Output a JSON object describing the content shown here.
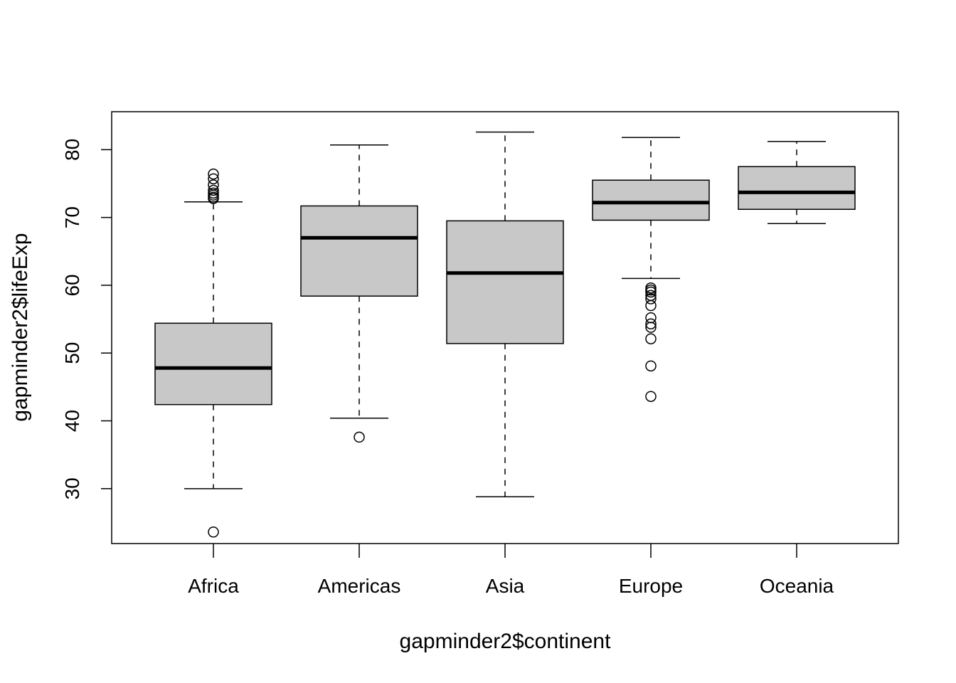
{
  "chart_data": {
    "type": "boxplot",
    "xlabel": "gapminder2$continent",
    "ylabel": "gapminder2$lifeExp",
    "categories": [
      "Africa",
      "Americas",
      "Asia",
      "Europe",
      "Oceania"
    ],
    "yticks": [
      30,
      40,
      50,
      60,
      70,
      80
    ],
    "ylim": [
      21.9,
      85.6
    ],
    "box_fill": "#c8c8c8",
    "boxes": [
      {
        "name": "Africa",
        "whisker_low": 30.0,
        "q1": 42.4,
        "median": 47.8,
        "q3": 54.4,
        "whisker_high": 72.3,
        "outliers": [
          23.6,
          72.8,
          73.0,
          73.3,
          73.6,
          74.0,
          74.8,
          75.7,
          76.4
        ]
      },
      {
        "name": "Americas",
        "whisker_low": 40.4,
        "q1": 58.4,
        "median": 67.0,
        "q3": 71.7,
        "whisker_high": 80.7,
        "outliers": [
          37.6
        ]
      },
      {
        "name": "Asia",
        "whisker_low": 28.8,
        "q1": 51.4,
        "median": 61.8,
        "q3": 69.5,
        "whisker_high": 82.6,
        "outliers": []
      },
      {
        "name": "Europe",
        "whisker_low": 61.0,
        "q1": 69.6,
        "median": 72.2,
        "q3": 75.5,
        "whisker_high": 81.8,
        "outliers": [
          43.6,
          48.1,
          52.1,
          53.8,
          54.3,
          55.2,
          57.0,
          58.0,
          58.5,
          59.0,
          59.3,
          59.6
        ]
      },
      {
        "name": "Oceania",
        "whisker_low": 69.1,
        "q1": 71.2,
        "median": 73.7,
        "q3": 77.5,
        "whisker_high": 81.2,
        "outliers": []
      }
    ]
  }
}
